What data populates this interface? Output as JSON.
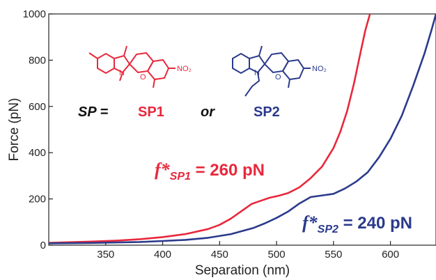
{
  "chart_data": {
    "type": "line",
    "xlabel": "Separation (nm)",
    "ylabel": "Force (pN)",
    "xlim": [
      300,
      640
    ],
    "ylim": [
      0,
      1000
    ],
    "x_ticks": [
      350,
      400,
      450,
      500,
      550,
      600
    ],
    "y_ticks": [
      0,
      200,
      400,
      600,
      800,
      1000
    ],
    "grid": false,
    "series": [
      {
        "name": "SP1",
        "color": "#e8283c",
        "x": [
          300,
          320,
          340,
          360,
          380,
          400,
          420,
          440,
          450,
          460,
          470,
          478,
          486,
          494,
          502,
          510,
          520,
          530,
          540,
          550,
          556,
          562,
          568,
          574,
          578,
          582
        ],
        "y": [
          10,
          13,
          16,
          20,
          26,
          35,
          48,
          70,
          88,
          115,
          150,
          178,
          192,
          205,
          214,
          225,
          250,
          290,
          340,
          420,
          490,
          580,
          700,
          840,
          930,
          1000
        ]
      },
      {
        "name": "SP2",
        "color": "#2b3a8c",
        "x": [
          300,
          340,
          380,
          400,
          420,
          440,
          460,
          480,
          490,
          500,
          510,
          520,
          530,
          540,
          550,
          560,
          570,
          580,
          590,
          600,
          610,
          620,
          630,
          636,
          640
        ],
        "y": [
          8,
          10,
          14,
          18,
          23,
          32,
          48,
          75,
          95,
          118,
          145,
          180,
          208,
          215,
          222,
          245,
          275,
          315,
          380,
          460,
          560,
          690,
          830,
          930,
          1000
        ]
      }
    ],
    "annotations": {
      "sp_label": "SP =",
      "sp1_label": "SP1",
      "or_label": "or",
      "sp2_label": "SP2",
      "sp1_force": {
        "symbol": "f*",
        "sub": "SP1",
        "text": " = 260 pN",
        "color": "#e8283c"
      },
      "sp2_force": {
        "symbol": "f*",
        "sub": "SP2",
        "text": " = 240 pN",
        "color": "#2b3a8c"
      },
      "nitro_label": "NO₂",
      "n_atom": "N",
      "o_atom": "O"
    }
  }
}
